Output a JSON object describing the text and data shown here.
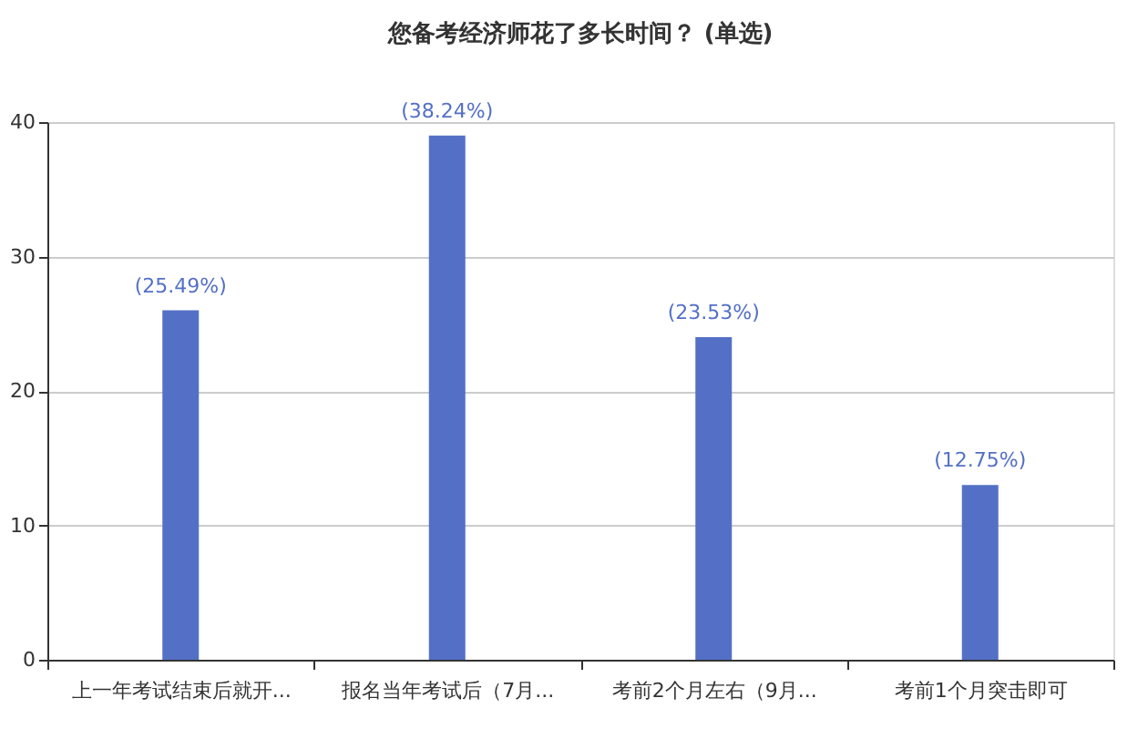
{
  "chart_data": {
    "type": "bar",
    "title": "您备考经济师花了多长时间？ (单选)",
    "categories": [
      "上一年考试结束后就开...",
      "报名当年考试后（7月...",
      "考前2个月左右（9月...",
      "考前1个月突击即可"
    ],
    "values": [
      26,
      39,
      24,
      13
    ],
    "color": "#5470c6",
    "annotations": [
      {
        "text": "(25.49%)",
        "x": "上一年考试结束后就开...",
        "y": 26
      },
      {
        "text": "(38.24%)",
        "x": "报名当年考试后（7月...",
        "y": 39
      },
      {
        "text": "(23.53%)",
        "x": "考前2个月左右（9月...",
        "y": 24
      },
      {
        "text": "(12.75%)",
        "x": "考前1个月突击即可",
        "y": 13
      }
    ],
    "ylim": [
      0,
      40
    ],
    "yticks": [
      0,
      10,
      20,
      30,
      40
    ],
    "grid": "y"
  }
}
